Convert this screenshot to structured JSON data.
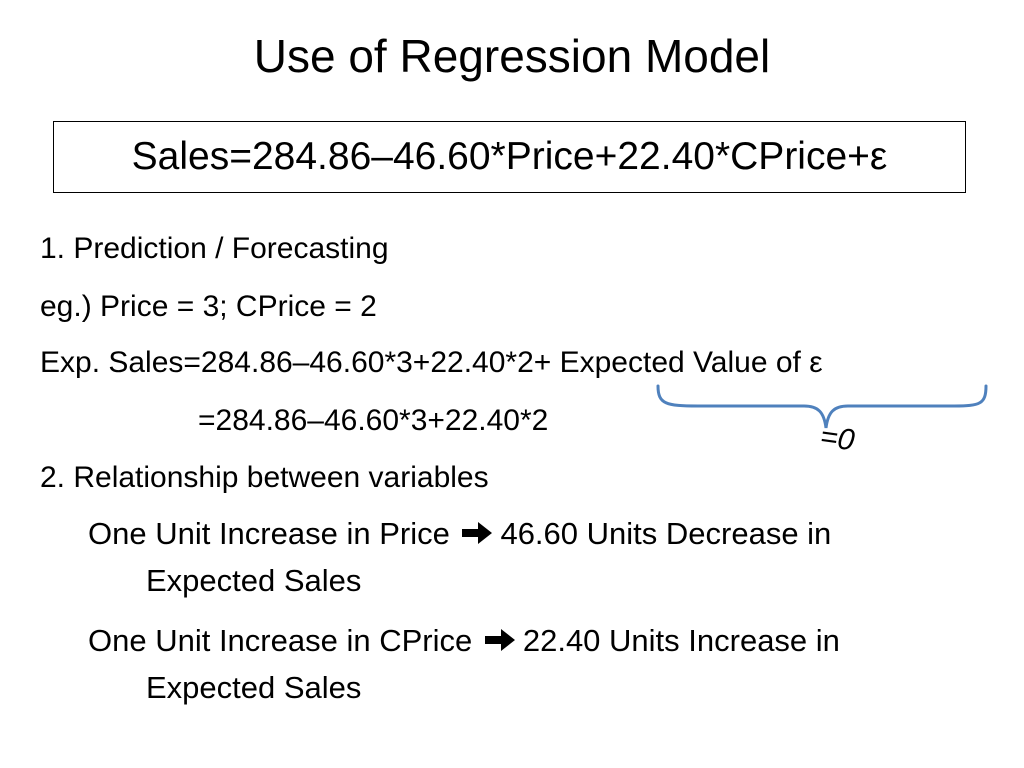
{
  "slide": {
    "title": "Use of Regression Model",
    "equation": "Sales=284.86–46.60*Price+22.40*CPrice+ε",
    "section1": {
      "heading": "1. Prediction / Forecasting",
      "example": "eg.) Price = 3; CPrice = 2",
      "expected_sales": "Exp. Sales=284.86–46.60*3+22.40*2+ Expected Value of ε",
      "simplified": "=284.86–46.60*3+22.40*2",
      "brace_label": "=0",
      "brace_color": "#4f81bd"
    },
    "section2": {
      "heading": "2. Relationship between variables",
      "items": [
        {
          "cause": "One Unit Increase in Price",
          "effect": "46.60 Units Decrease in",
          "effect_cont": "Expected Sales"
        },
        {
          "cause": "One Unit Increase in CPrice",
          "effect": "22.40 Units Increase in",
          "effect_cont": "Expected Sales"
        }
      ],
      "arrow_icon": "bold-right-arrow-icon"
    }
  }
}
